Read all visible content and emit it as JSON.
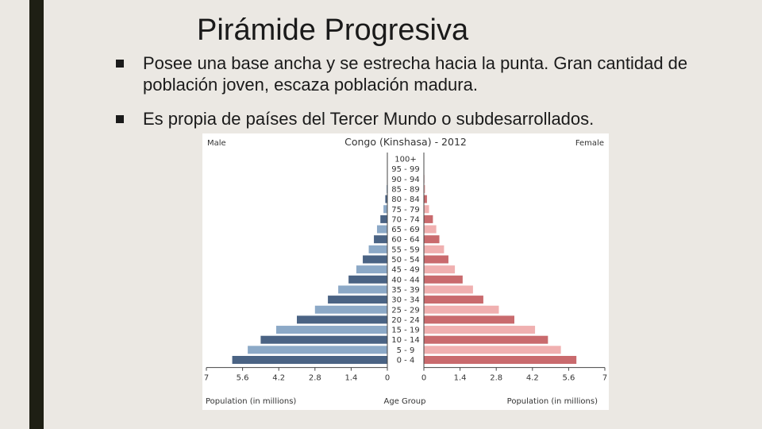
{
  "slide": {
    "title": "Pirámide Progresiva",
    "bullets": [
      "Posee una base ancha y se estrecha hacia la punta. Gran cantidad de población joven, escaza población madura.",
      "Es propia de países del Tercer Mundo o subdesarrollados."
    ]
  },
  "chart_data": {
    "type": "bar",
    "orientation": "horizontal",
    "title": "Congo (Kinshasa) - 2012",
    "left_label": "Male",
    "right_label": "Female",
    "categories": [
      "0 - 4",
      "5 - 9",
      "10 - 14",
      "15 - 19",
      "20 - 24",
      "25 - 29",
      "30 - 34",
      "35 - 39",
      "40 - 44",
      "45 - 49",
      "50 - 54",
      "55 - 59",
      "60 - 64",
      "65 - 69",
      "70 - 74",
      "75 - 79",
      "80 - 84",
      "85 - 89",
      "90 - 94",
      "95 - 99",
      "100+"
    ],
    "series": [
      {
        "name": "Male",
        "values": [
          6.0,
          5.4,
          4.9,
          4.3,
          3.5,
          2.8,
          2.3,
          1.9,
          1.5,
          1.2,
          0.95,
          0.72,
          0.52,
          0.4,
          0.27,
          0.15,
          0.08,
          0.03,
          0.01,
          0.005,
          0.002
        ]
      },
      {
        "name": "Female",
        "values": [
          5.9,
          5.3,
          4.8,
          4.3,
          3.5,
          2.9,
          2.3,
          1.9,
          1.5,
          1.2,
          0.95,
          0.78,
          0.6,
          0.48,
          0.35,
          0.2,
          0.12,
          0.05,
          0.02,
          0.005,
          0.002
        ]
      }
    ],
    "xlabel_left": "Population (in millions)",
    "xlabel_center": "Age Group",
    "xlabel_right": "Population (in millions)",
    "xlim": [
      0,
      7
    ],
    "ticks_left": [
      "7",
      "5.6",
      "4.2",
      "2.8",
      "1.4",
      "0"
    ],
    "ticks_right": [
      "0",
      "1.4",
      "2.8",
      "4.2",
      "5.6",
      "7"
    ],
    "colors": {
      "male_dark": "#4a6384",
      "male_light": "#8ca9c7",
      "female_dark": "#c96a6d",
      "female_light": "#f0b0b0",
      "axis": "#444444"
    }
  }
}
